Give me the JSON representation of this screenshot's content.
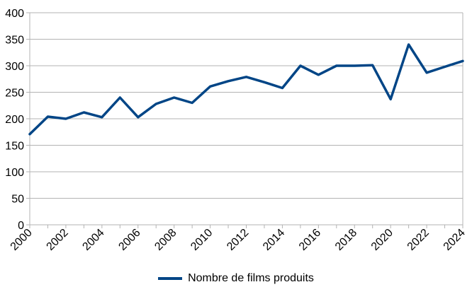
{
  "chart_data": {
    "type": "line",
    "title": "",
    "xlabel": "",
    "ylabel": "",
    "ylim": [
      0,
      400
    ],
    "yticks": [
      0,
      50,
      100,
      150,
      200,
      250,
      300,
      350,
      400
    ],
    "x": [
      2000,
      2001,
      2002,
      2003,
      2004,
      2005,
      2006,
      2007,
      2008,
      2009,
      2010,
      2011,
      2012,
      2013,
      2014,
      2015,
      2016,
      2017,
      2018,
      2019,
      2020,
      2021,
      2022,
      2023,
      2024
    ],
    "x_tick_labels": [
      "2000",
      "2002",
      "2004",
      "2006",
      "2008",
      "2010",
      "2012",
      "2014",
      "2016",
      "2018",
      "2020",
      "2022",
      "2024"
    ],
    "series": [
      {
        "name": "Nombre de films produits",
        "color": "#004586",
        "values": [
          171,
          204,
          200,
          212,
          203,
          240,
          203,
          228,
          240,
          230,
          261,
          271,
          279,
          269,
          258,
          300,
          283,
          300,
          300,
          301,
          237,
          340,
          287,
          298,
          309
        ]
      }
    ],
    "grid": "horizontal",
    "legend_position": "bottom"
  }
}
